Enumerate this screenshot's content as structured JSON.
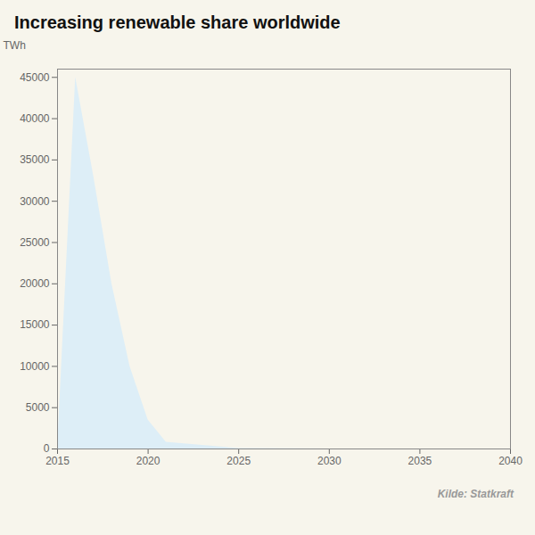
{
  "chart_data": {
    "type": "area",
    "title": "Increasing renewable share worldwide",
    "ylabel": "TWh",
    "caption": "Kilde: Statkraft",
    "x": [
      2015,
      2016,
      2017,
      2018,
      2019,
      2020,
      2021,
      2025,
      2030,
      2035,
      2040
    ],
    "values": [
      0,
      45000,
      33000,
      20000,
      10000,
      3500,
      800,
      50,
      10,
      5,
      0
    ],
    "color": "#ddeef7",
    "xlim": [
      2015,
      2040
    ],
    "ylim": [
      0,
      46000
    ],
    "xticks": [
      2015,
      2020,
      2025,
      2030,
      2035,
      2040
    ],
    "yticks": [
      0,
      5000,
      10000,
      15000,
      20000,
      25000,
      30000,
      35000,
      40000,
      45000
    ],
    "grid": false
  }
}
